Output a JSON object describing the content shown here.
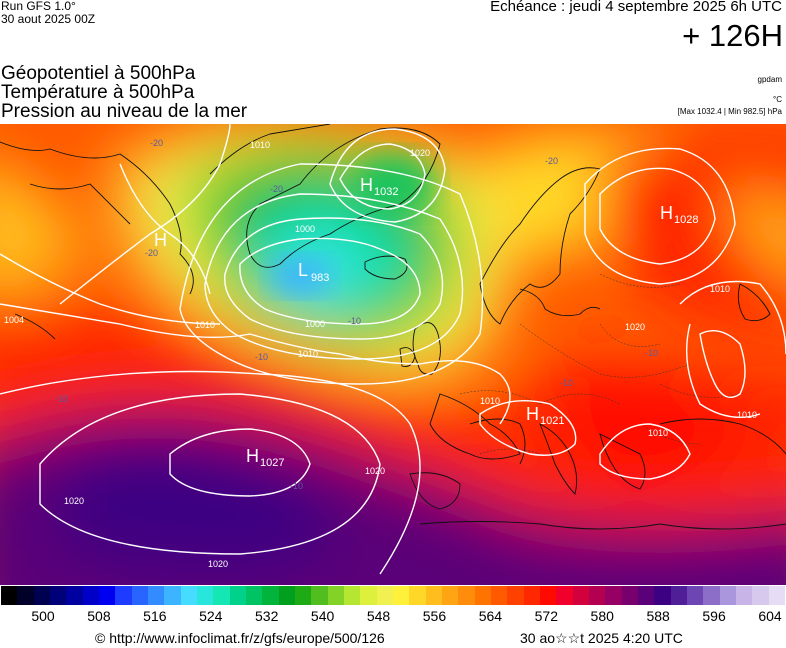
{
  "header": {
    "run_line1": "Run GFS 1.0°",
    "run_line2": "30 aout 2025 00Z",
    "echeance": "Echéance : jeudi 4 septembre 2025 6h UTC",
    "step": "+ 126H"
  },
  "titles": {
    "line1": "Géopotentiel à 500hPa",
    "line2": "Température à 500hPa",
    "line3": "Pression au niveau de la mer"
  },
  "units": {
    "gpdam": "gpdam",
    "celsius": "°C",
    "pressure_range": "[Max 1032.4 | Min 982.5] hPa"
  },
  "pressure_centers": [
    {
      "letter": "H",
      "value": "1032"
    },
    {
      "letter": "L",
      "value": "983"
    },
    {
      "letter": "H",
      "value": "1028"
    },
    {
      "letter": "H",
      "value": "1021"
    },
    {
      "letter": "H",
      "value": "1027"
    },
    {
      "letter": "H",
      "value": ""
    }
  ],
  "isobar_labels": [
    "1010",
    "1000",
    "1010",
    "1000",
    "1020",
    "1010",
    "1020",
    "1020",
    "1020",
    "1010",
    "1010",
    "1010",
    "1004",
    "1010",
    "1020"
  ],
  "temp_labels": [
    "-20",
    "-20",
    "-20",
    "-20",
    "-10",
    "-10",
    "-10",
    "-10",
    "-10",
    "-10"
  ],
  "scale": {
    "colors": [
      "#000000",
      "#000028",
      "#000050",
      "#000078",
      "#0000a0",
      "#0000c8",
      "#0000f0",
      "#1e3cff",
      "#2864ff",
      "#328cff",
      "#3cb4ff",
      "#46dcff",
      "#28e6dc",
      "#14e6b4",
      "#00d28c",
      "#00c364",
      "#00b43c",
      "#00a01e",
      "#1eaa14",
      "#50be1e",
      "#82d228",
      "#b4e632",
      "#dcf03c",
      "#f0f050",
      "#fff03c",
      "#ffd728",
      "#ffbe1e",
      "#ffa514",
      "#ff8c0a",
      "#ff7300",
      "#ff5a00",
      "#ff4100",
      "#ff2800",
      "#ff0a00",
      "#f0002a",
      "#d2003c",
      "#b40050",
      "#960064",
      "#78006e",
      "#5a0078",
      "#3c0082",
      "#501e96",
      "#6e46b4",
      "#8c6ec8",
      "#aa96dc",
      "#c8b4e6",
      "#d7c8ee",
      "#e6dcf5"
    ],
    "labels": [
      "500",
      "508",
      "516",
      "524",
      "532",
      "540",
      "548",
      "556",
      "564",
      "572",
      "580",
      "588",
      "596",
      "604"
    ]
  },
  "footer": {
    "url": "© http://www.infoclimat.fr/z/gfs/europe/500/126",
    "timestamp": "30 ao☆☆t 2025  4:20 UTC"
  }
}
